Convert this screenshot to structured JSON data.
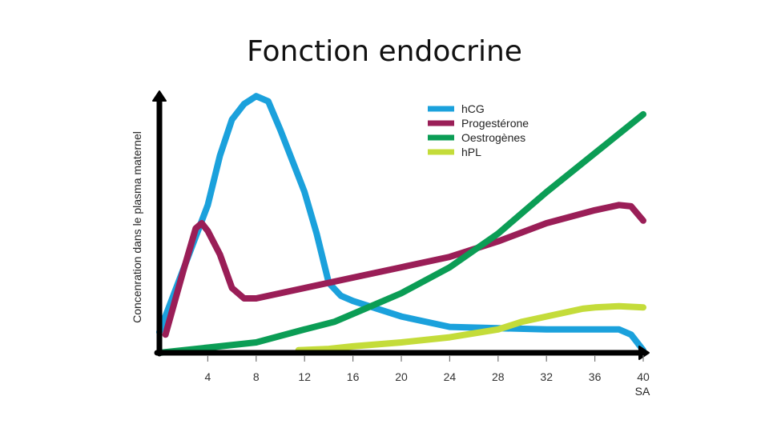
{
  "slide": {
    "title": "Fonction endocrine"
  },
  "chart_data": {
    "type": "line",
    "title": "Fonction endocrine",
    "xlabel": "SA",
    "ylabel": "Concenration dans le plasma maternel",
    "xlim": [
      0,
      40
    ],
    "ylim": [
      0,
      100
    ],
    "xticks": [
      4,
      8,
      12,
      16,
      20,
      24,
      28,
      32,
      36,
      40
    ],
    "legend": "top-center",
    "grid": false,
    "series": [
      {
        "name": "hCG",
        "color": "#1ba1dc",
        "points": [
          [
            0,
            8
          ],
          [
            4,
            57
          ],
          [
            5,
            76
          ],
          [
            6,
            90
          ],
          [
            7,
            96
          ],
          [
            8,
            99
          ],
          [
            9,
            97
          ],
          [
            10,
            86
          ],
          [
            11,
            74
          ],
          [
            12,
            62
          ],
          [
            13,
            46
          ],
          [
            14,
            27
          ],
          [
            15,
            22
          ],
          [
            16,
            20
          ],
          [
            18,
            17
          ],
          [
            20,
            14
          ],
          [
            22,
            12
          ],
          [
            24,
            10
          ],
          [
            28,
            9.5
          ],
          [
            32,
            9
          ],
          [
            36,
            9
          ],
          [
            38,
            9
          ],
          [
            39,
            7
          ],
          [
            40,
            1
          ]
        ]
      },
      {
        "name": "Progestérone",
        "color": "#9a1e57",
        "points": [
          [
            0.5,
            7
          ],
          [
            2,
            32
          ],
          [
            3,
            48
          ],
          [
            3.5,
            50
          ],
          [
            4,
            47
          ],
          [
            5,
            38
          ],
          [
            6,
            25
          ],
          [
            7,
            21
          ],
          [
            8,
            21
          ],
          [
            12,
            25
          ],
          [
            16,
            29
          ],
          [
            20,
            33
          ],
          [
            24,
            37
          ],
          [
            28,
            43
          ],
          [
            32,
            50
          ],
          [
            36,
            55
          ],
          [
            38,
            57
          ],
          [
            39,
            56.5
          ],
          [
            40,
            51
          ]
        ]
      },
      {
        "name": "Oestrogènes",
        "color": "#0b9d55",
        "points": [
          [
            0,
            0
          ],
          [
            4,
            2
          ],
          [
            8,
            4
          ],
          [
            12,
            9
          ],
          [
            14.5,
            12
          ],
          [
            17,
            17
          ],
          [
            20,
            23
          ],
          [
            24,
            33
          ],
          [
            28,
            46
          ],
          [
            32,
            62
          ],
          [
            36,
            77
          ],
          [
            40,
            92
          ]
        ]
      },
      {
        "name": "hPL",
        "color": "#c4dc3a",
        "points": [
          [
            11.5,
            1
          ],
          [
            14,
            1.5
          ],
          [
            16,
            2.5
          ],
          [
            20,
            4
          ],
          [
            24,
            6
          ],
          [
            28,
            9
          ],
          [
            30,
            12
          ],
          [
            32,
            14
          ],
          [
            35,
            17
          ],
          [
            36,
            17.5
          ],
          [
            38,
            18
          ],
          [
            40,
            17.5
          ]
        ]
      }
    ]
  }
}
